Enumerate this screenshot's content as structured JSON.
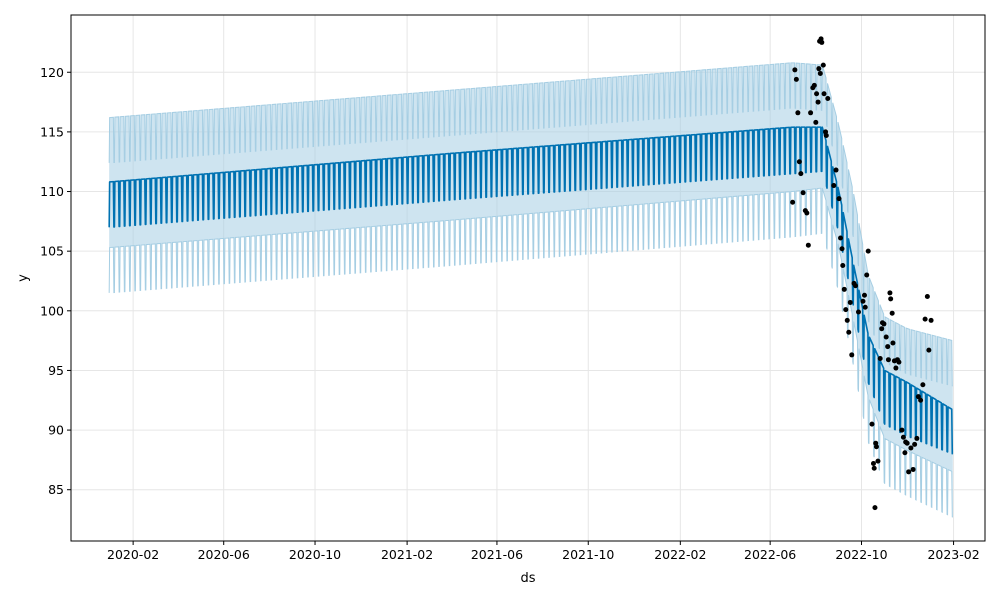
{
  "chart_data": {
    "type": "line",
    "xlabel": "ds",
    "ylabel": "y",
    "x_ticks": [
      "2020-02",
      "2020-06",
      "2020-10",
      "2021-02",
      "2021-06",
      "2021-10",
      "2022-02",
      "2022-06",
      "2022-10",
      "2023-02"
    ],
    "y_ticks": [
      85,
      90,
      95,
      100,
      105,
      110,
      115,
      120
    ],
    "xlim": [
      "2019-11-10",
      "2023-03-15"
    ],
    "ylim": [
      80.7,
      124.8
    ],
    "grid": true,
    "colors": {
      "forecast_line": "#0072B2",
      "uncertainty_band": "#a6cee3",
      "observed_points": "#000000",
      "grid": "#e6e6e6"
    },
    "series": [
      {
        "kind": "forecast_trend_upper",
        "x": [
          "2019-12-31",
          "2021-04-01",
          "2022-07-01",
          "2022-08-10",
          "2022-09-01",
          "2022-09-20",
          "2022-10-10",
          "2022-11-01",
          "2022-12-01",
          "2023-01-31"
        ],
        "y": [
          110.8,
          113.2,
          115.4,
          115.4,
          110.0,
          104.0,
          98.0,
          95.0,
          94.0,
          91.7
        ]
      },
      {
        "kind": "forecast_trend_lower",
        "x": [
          "2019-12-31",
          "2021-04-01",
          "2022-07-01",
          "2022-08-10",
          "2022-09-01",
          "2022-09-20",
          "2022-10-10",
          "2022-11-01",
          "2022-12-01",
          "2023-01-31"
        ],
        "y": [
          107.0,
          109.3,
          111.5,
          111.7,
          106.5,
          100.5,
          94.0,
          90.5,
          89.5,
          88.0
        ]
      },
      {
        "kind": "uncertainty_upper",
        "x": [
          "2019-12-31",
          "2021-04-01",
          "2022-07-01",
          "2022-08-10",
          "2022-09-01",
          "2022-09-20",
          "2022-10-10",
          "2022-11-01",
          "2022-12-01",
          "2023-01-31"
        ],
        "y": [
          116.2,
          118.5,
          120.8,
          120.6,
          115.5,
          110.0,
          103.0,
          99.5,
          98.5,
          97.5
        ]
      },
      {
        "kind": "uncertainty_lower",
        "x": [
          "2019-12-31",
          "2021-04-01",
          "2022-07-01",
          "2022-08-10",
          "2022-09-01",
          "2022-09-20",
          "2022-10-10",
          "2022-11-01",
          "2022-12-01",
          "2023-01-31"
        ],
        "y": [
          101.5,
          103.8,
          106.2,
          106.5,
          101.5,
          95.5,
          89.0,
          85.5,
          84.5,
          82.7
        ]
      }
    ],
    "points": [
      [
        "2022-07-01",
        109.1
      ],
      [
        "2022-07-04",
        120.2
      ],
      [
        "2022-07-06",
        119.4
      ],
      [
        "2022-07-08",
        116.6
      ],
      [
        "2022-07-10",
        112.5
      ],
      [
        "2022-07-12",
        111.5
      ],
      [
        "2022-07-15",
        109.9
      ],
      [
        "2022-07-18",
        108.4
      ],
      [
        "2022-07-20",
        108.2
      ],
      [
        "2022-07-22",
        105.5
      ],
      [
        "2022-07-25",
        116.6
      ],
      [
        "2022-07-28",
        118.7
      ],
      [
        "2022-07-30",
        118.9
      ],
      [
        "2022-08-01",
        115.8
      ],
      [
        "2022-08-02",
        118.2
      ],
      [
        "2022-08-04",
        117.5
      ],
      [
        "2022-08-05",
        120.3
      ],
      [
        "2022-08-06",
        122.6
      ],
      [
        "2022-08-07",
        119.9
      ],
      [
        "2022-08-08",
        122.8
      ],
      [
        "2022-08-09",
        122.5
      ],
      [
        "2022-08-11",
        120.6
      ],
      [
        "2022-08-12",
        118.2
      ],
      [
        "2022-08-14",
        115.0
      ],
      [
        "2022-08-15",
        114.7
      ],
      [
        "2022-08-17",
        117.8
      ],
      [
        "2022-08-25",
        110.5
      ],
      [
        "2022-08-28",
        111.8
      ],
      [
        "2022-09-01",
        109.4
      ],
      [
        "2022-09-03",
        106.1
      ],
      [
        "2022-09-05",
        105.2
      ],
      [
        "2022-09-06",
        103.8
      ],
      [
        "2022-09-08",
        101.8
      ],
      [
        "2022-09-10",
        100.1
      ],
      [
        "2022-09-12",
        99.2
      ],
      [
        "2022-09-14",
        98.2
      ],
      [
        "2022-09-16",
        100.7
      ],
      [
        "2022-09-18",
        96.3
      ],
      [
        "2022-09-21",
        102.3
      ],
      [
        "2022-09-23",
        102.1
      ],
      [
        "2022-09-27",
        99.9
      ],
      [
        "2022-10-03",
        100.8
      ],
      [
        "2022-10-05",
        101.3
      ],
      [
        "2022-10-06",
        100.3
      ],
      [
        "2022-10-08",
        103.0
      ],
      [
        "2022-10-10",
        105.0
      ],
      [
        "2022-10-15",
        90.5
      ],
      [
        "2022-10-17",
        87.2
      ],
      [
        "2022-10-18",
        86.8
      ],
      [
        "2022-10-20",
        88.9
      ],
      [
        "2022-10-21",
        88.6
      ],
      [
        "2022-10-23",
        87.4
      ],
      [
        "2022-10-19",
        83.5
      ],
      [
        "2022-10-26",
        96.0
      ],
      [
        "2022-10-28",
        98.5
      ],
      [
        "2022-10-29",
        99.0
      ],
      [
        "2022-10-31",
        98.9
      ],
      [
        "2022-11-03",
        97.8
      ],
      [
        "2022-11-05",
        97.0
      ],
      [
        "2022-11-06",
        95.9
      ],
      [
        "2022-11-08",
        101.5
      ],
      [
        "2022-11-09",
        101.0
      ],
      [
        "2022-11-11",
        99.8
      ],
      [
        "2022-11-12",
        97.3
      ],
      [
        "2022-11-14",
        95.8
      ],
      [
        "2022-11-16",
        95.2
      ],
      [
        "2022-11-18",
        95.9
      ],
      [
        "2022-11-20",
        95.7
      ],
      [
        "2022-11-24",
        90.0
      ],
      [
        "2022-11-26",
        89.4
      ],
      [
        "2022-11-28",
        88.1
      ],
      [
        "2022-11-29",
        89.0
      ],
      [
        "2022-12-01",
        88.9
      ],
      [
        "2022-12-03",
        86.5
      ],
      [
        "2022-12-06",
        88.5
      ],
      [
        "2022-12-09",
        86.7
      ],
      [
        "2022-12-11",
        88.8
      ],
      [
        "2022-12-14",
        89.3
      ],
      [
        "2022-12-16",
        92.8
      ],
      [
        "2022-12-19",
        92.5
      ],
      [
        "2022-12-22",
        93.8
      ],
      [
        "2022-12-25",
        99.3
      ],
      [
        "2022-12-28",
        101.2
      ],
      [
        "2022-12-30",
        96.7
      ],
      [
        "2023-01-02",
        99.2
      ]
    ]
  }
}
